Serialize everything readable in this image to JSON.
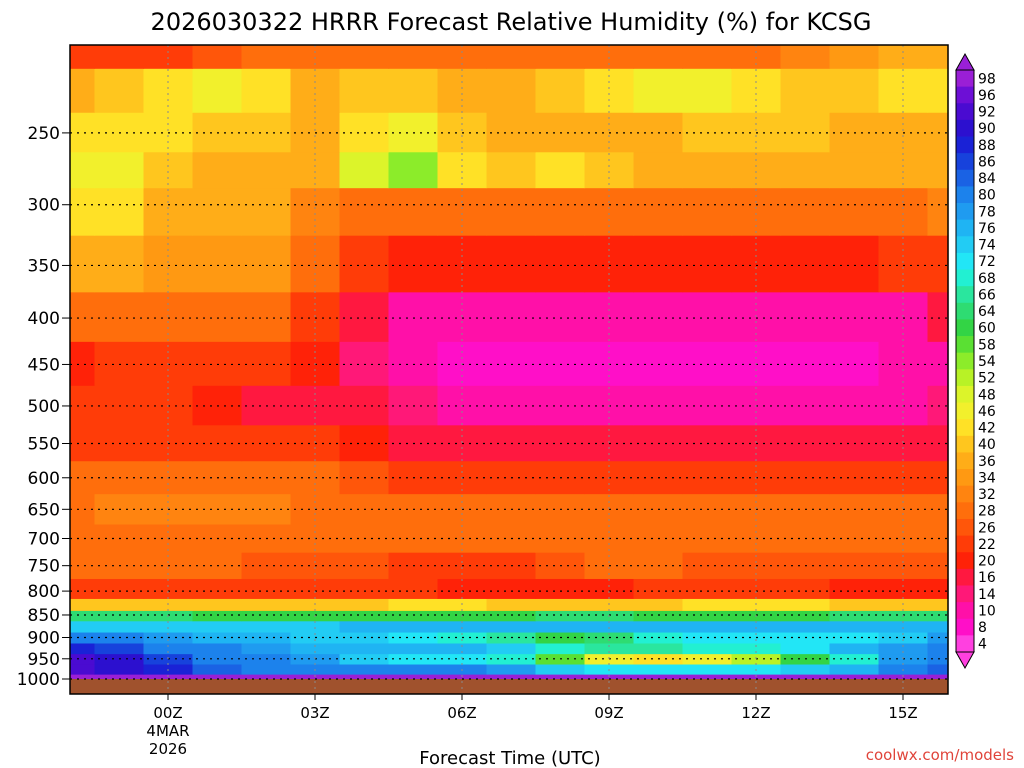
{
  "chart_data": {
    "type": "heatmap",
    "title": "2026030322 HRRR Forecast Relative Humidity (%) for KCSG",
    "xlabel": "Forecast Time (UTC)",
    "ylabel": "",
    "y_scale": "log",
    "y_ticks": [
      250,
      300,
      350,
      400,
      450,
      500,
      550,
      600,
      650,
      700,
      750,
      800,
      850,
      900,
      950,
      1000
    ],
    "y_range": [
      1000,
      200
    ],
    "x_ticks": [
      "00Z",
      "03Z",
      "06Z",
      "09Z",
      "12Z",
      "15Z"
    ],
    "x_date_label": [
      "4MAR",
      "2026"
    ],
    "grid": true,
    "colorbar_levels": [
      98,
      96,
      92,
      90,
      88,
      86,
      84,
      80,
      78,
      76,
      74,
      72,
      68,
      66,
      64,
      60,
      58,
      54,
      52,
      48,
      46,
      42,
      40,
      36,
      34,
      32,
      28,
      26,
      22,
      20,
      16,
      14,
      10,
      8,
      4
    ],
    "colorbar_colors": [
      "#9a1fd6",
      "#6d0fd6",
      "#4a0bd1",
      "#2c10cf",
      "#1a22d6",
      "#1742dc",
      "#1a62e4",
      "#1c82ec",
      "#1f9bf0",
      "#1fb4f3",
      "#22ccf4",
      "#22e6f6",
      "#22f0d2",
      "#2ae69e",
      "#2edc72",
      "#33d445",
      "#5ae033",
      "#8cec2a",
      "#b8f226",
      "#dcf42a",
      "#f2f02c",
      "#ffe126",
      "#ffc61e",
      "#ffad18",
      "#ff9912",
      "#ff8410",
      "#ff6e0c",
      "#ff560a",
      "#ff3c08",
      "#ff2208",
      "#ff1840",
      "#ff1878",
      "#ff10a8",
      "#ff0fc8",
      "#ff40e0"
    ],
    "rows": [
      {
        "p": 1000,
        "values": [
          100,
          100,
          100,
          100,
          100,
          100,
          100,
          100,
          100,
          100,
          100,
          100,
          100,
          100,
          100,
          100,
          100,
          100,
          100
        ]
      },
      {
        "p": 975,
        "values": [
          92,
          90,
          88,
          84,
          82,
          82,
          80,
          80,
          80,
          78,
          74,
          72,
          72,
          72,
          72,
          74,
          76,
          80,
          84
        ]
      },
      {
        "p": 950,
        "values": [
          92,
          90,
          86,
          82,
          80,
          78,
          74,
          72,
          72,
          70,
          58,
          46,
          44,
          46,
          52,
          60,
          70,
          78,
          82
        ]
      },
      {
        "p": 925,
        "values": [
          88,
          86,
          82,
          80,
          78,
          76,
          76,
          76,
          76,
          74,
          70,
          66,
          66,
          68,
          68,
          72,
          76,
          78,
          80
        ]
      },
      {
        "p": 900,
        "values": [
          82,
          80,
          78,
          76,
          76,
          74,
          74,
          72,
          70,
          66,
          60,
          64,
          70,
          72,
          72,
          72,
          72,
          74,
          78
        ]
      },
      {
        "p": 875,
        "values": [
          74,
          74,
          74,
          74,
          74,
          74,
          76,
          76,
          76,
          76,
          76,
          76,
          76,
          76,
          76,
          76,
          76,
          76,
          76
        ]
      },
      {
        "p": 850,
        "values": [
          64,
          64,
          64,
          62,
          62,
          60,
          60,
          62,
          62,
          62,
          64,
          64,
          62,
          60,
          60,
          62,
          64,
          64,
          64
        ]
      },
      {
        "p": 830,
        "values": [
          40,
          40,
          40,
          40,
          40,
          40,
          40,
          42,
          42,
          40,
          40,
          40,
          40,
          42,
          44,
          42,
          40,
          40,
          40
        ]
      },
      {
        "p": 800,
        "values": [
          22,
          22,
          22,
          24,
          24,
          24,
          22,
          22,
          20,
          20,
          20,
          20,
          22,
          22,
          22,
          22,
          20,
          20,
          20
        ]
      },
      {
        "p": 750,
        "values": [
          28,
          28,
          28,
          28,
          26,
          26,
          26,
          24,
          24,
          24,
          26,
          28,
          28,
          26,
          26,
          26,
          26,
          26,
          26
        ]
      },
      {
        "p": 700,
        "values": [
          28,
          28,
          30,
          30,
          30,
          28,
          28,
          28,
          28,
          28,
          28,
          28,
          28,
          28,
          28,
          28,
          28,
          28,
          28
        ]
      },
      {
        "p": 650,
        "values": [
          30,
          32,
          32,
          32,
          32,
          30,
          30,
          30,
          30,
          30,
          30,
          30,
          30,
          30,
          30,
          30,
          30,
          30,
          30
        ]
      },
      {
        "p": 600,
        "values": [
          30,
          30,
          30,
          30,
          30,
          28,
          26,
          24,
          24,
          24,
          22,
          22,
          22,
          22,
          22,
          22,
          22,
          22,
          24
        ]
      },
      {
        "p": 550,
        "values": [
          24,
          24,
          24,
          24,
          24,
          22,
          20,
          18,
          16,
          16,
          16,
          16,
          16,
          16,
          16,
          16,
          16,
          16,
          18
        ]
      },
      {
        "p": 500,
        "values": [
          22,
          22,
          22,
          20,
          18,
          16,
          16,
          14,
          12,
          12,
          12,
          12,
          12,
          12,
          12,
          12,
          12,
          12,
          14
        ]
      },
      {
        "p": 450,
        "values": [
          20,
          22,
          22,
          22,
          22,
          20,
          14,
          10,
          8,
          8,
          8,
          8,
          8,
          8,
          8,
          8,
          8,
          10,
          12
        ]
      },
      {
        "p": 400,
        "values": [
          28,
          28,
          28,
          28,
          28,
          24,
          16,
          10,
          10,
          10,
          10,
          10,
          10,
          10,
          10,
          10,
          10,
          12,
          16
        ]
      },
      {
        "p": 350,
        "values": [
          36,
          36,
          34,
          34,
          34,
          30,
          22,
          20,
          20,
          20,
          20,
          20,
          20,
          20,
          20,
          20,
          20,
          22,
          24
        ]
      },
      {
        "p": 300,
        "values": [
          42,
          42,
          38,
          36,
          36,
          32,
          28,
          30,
          30,
          28,
          28,
          28,
          28,
          28,
          28,
          28,
          28,
          30,
          32
        ]
      },
      {
        "p": 275,
        "values": [
          46,
          46,
          40,
          36,
          36,
          36,
          50,
          54,
          44,
          40,
          44,
          40,
          36,
          36,
          36,
          36,
          36,
          36,
          38
        ]
      },
      {
        "p": 250,
        "values": [
          42,
          42,
          42,
          40,
          40,
          36,
          42,
          46,
          40,
          36,
          36,
          36,
          38,
          40,
          40,
          40,
          38,
          36,
          36
        ]
      },
      {
        "p": 225,
        "values": [
          38,
          40,
          44,
          46,
          42,
          38,
          40,
          40,
          36,
          36,
          40,
          44,
          46,
          46,
          42,
          40,
          40,
          42,
          44
        ]
      },
      {
        "p": 200,
        "values": [
          22,
          22,
          24,
          26,
          28,
          28,
          30,
          30,
          30,
          30,
          28,
          28,
          28,
          30,
          30,
          32,
          34,
          36,
          38
        ]
      }
    ]
  },
  "footer": {
    "credit": "coolwx.com/models"
  }
}
